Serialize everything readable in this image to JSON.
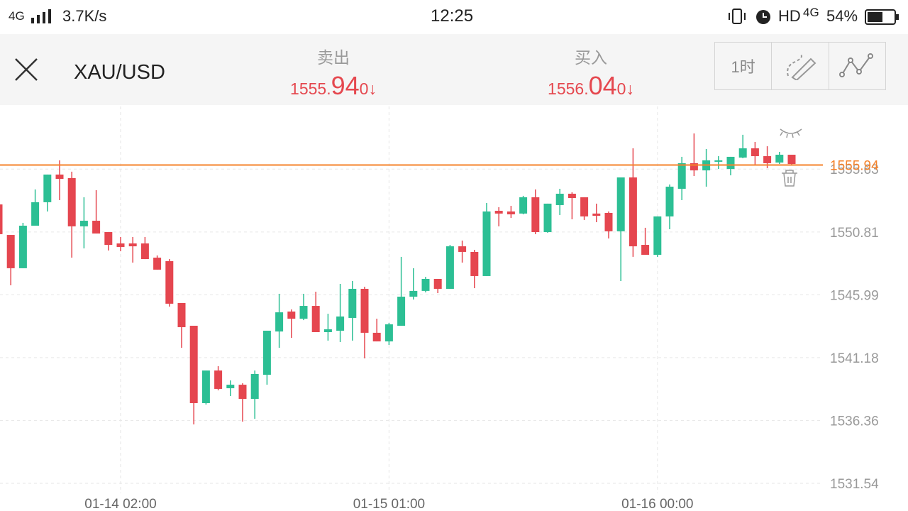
{
  "status_bar": {
    "network": "4G",
    "speed": "3.7K/s",
    "time": "12:25",
    "hd": "HD",
    "network2": "4G",
    "battery": "54%"
  },
  "header": {
    "symbol": "XAU/USD",
    "sell": {
      "label": "卖出",
      "price_main": "1555.",
      "price_big": "94",
      "price_small": "0",
      "arrow": "↓"
    },
    "buy": {
      "label": "买入",
      "price_main": "1556.",
      "price_big": "04",
      "price_small": "0",
      "arrow": "↓"
    },
    "timeframe": "1时"
  },
  "chart_data": {
    "type": "candlestick",
    "categories": [
      null,
      null,
      null,
      null,
      null,
      null,
      null,
      null,
      null,
      null,
      "01-14 02:00",
      null,
      null,
      null,
      null,
      null,
      null,
      null,
      null,
      null,
      null,
      null,
      null,
      null,
      null,
      null,
      null,
      null,
      null,
      null,
      null,
      null,
      "01-15 01:00",
      null,
      null,
      null,
      null,
      null,
      null,
      null,
      null,
      null,
      null,
      null,
      null,
      null,
      null,
      null,
      null,
      null,
      null,
      null,
      null,
      null,
      "01-16 00:00",
      null,
      null,
      null,
      null,
      null,
      null,
      null,
      null,
      null,
      null,
      null
    ],
    "open": [
      1552.92,
      1550.58,
      1548.03,
      1551.29,
      1553.09,
      1555.21,
      1554.94,
      1551.24,
      1551.67,
      1550.8,
      1549.93,
      1549.93,
      1549.93,
      1548.84,
      1548.57,
      1545.36,
      1543.62,
      1537.69,
      1540.19,
      1538.83,
      1539.1,
      1538.01,
      1539.86,
      1543.18,
      1544.71,
      1544.16,
      1545.14,
      1543.13,
      1543.24,
      1544.22,
      1546.45,
      1543.08,
      1542.42,
      1543.62,
      1545.85,
      1546.29,
      1547.21,
      1546.45,
      1549.71,
      1549.28,
      1547.43,
      1552.43,
      1552.38,
      1552.22,
      1553.47,
      1550.8,
      1552.87,
      1553.74,
      1553.47,
      1552.22,
      1552.27,
      1550.86,
      1554.99,
      1549.82,
      1549.06,
      1552.0,
      1554.12,
      1556.08,
      1555.53,
      1556.19,
      1555.64,
      1556.51,
      1557.22,
      1556.62,
      1556.13,
      1556.73
    ],
    "high": [
      1552.92,
      1550.58,
      1551.51,
      1554.07,
      1555.21,
      1556.3,
      1555.43,
      1553.47,
      1554.01,
      1550.8,
      1550.42,
      1550.42,
      1550.42,
      1549.01,
      1548.73,
      1545.36,
      1543.62,
      1540.19,
      1540.52,
      1539.43,
      1539.21,
      1540.19,
      1543.24,
      1546.07,
      1544.87,
      1546.07,
      1546.23,
      1544.54,
      1546.83,
      1547.05,
      1546.61,
      1544.16,
      1543.84,
      1548.9,
      1548.03,
      1547.37,
      1547.21,
      1549.82,
      1550.15,
      1549.44,
      1553.03,
      1552.71,
      1552.81,
      1553.58,
      1554.07,
      1552.98,
      1554.12,
      1553.85,
      1553.47,
      1552.98,
      1552.38,
      1554.99,
      1557.22,
      1551.13,
      1552.0,
      1554.45,
      1556.57,
      1558.36,
      1557.17,
      1556.62,
      1556.57,
      1558.26,
      1557.71,
      1557.38,
      1556.95,
      1556.73
    ],
    "low": [
      1550.64,
      1546.72,
      1548.03,
      1551.29,
      1552.38,
      1553.25,
      1548.84,
      1549.55,
      1550.69,
      1549.39,
      1549.33,
      1548.46,
      1548.73,
      1547.92,
      1545.09,
      1541.93,
      1536.06,
      1537.58,
      1538.67,
      1538.23,
      1536.27,
      1536.49,
      1539.1,
      1541.93,
      1542.69,
      1544.05,
      1543.13,
      1542.48,
      1542.37,
      1542.48,
      1541.12,
      1542.42,
      1542.15,
      1543.62,
      1545.63,
      1546.18,
      1546.12,
      1546.45,
      1548.46,
      1546.5,
      1547.43,
      1551.24,
      1551.89,
      1552.16,
      1550.64,
      1550.75,
      1552.11,
      1551.78,
      1551.73,
      1551.56,
      1550.31,
      1547.05,
      1548.9,
      1549.06,
      1548.9,
      1551.02,
      1553.25,
      1555.1,
      1554.28,
      1555.64,
      1555.15,
      1556.46,
      1555.97,
      1555.7,
      1556.02,
      1555.97
    ],
    "close": [
      1550.64,
      1548.03,
      1551.29,
      1553.09,
      1555.21,
      1554.88,
      1551.24,
      1551.67,
      1550.69,
      1549.82,
      1549.66,
      1549.71,
      1548.73,
      1547.92,
      1545.31,
      1543.51,
      1537.69,
      1540.19,
      1538.78,
      1539.1,
      1538.01,
      1539.92,
      1543.24,
      1544.65,
      1544.16,
      1545.14,
      1543.13,
      1543.35,
      1544.33,
      1546.45,
      1543.08,
      1542.42,
      1543.73,
      1545.85,
      1546.29,
      1547.21,
      1546.45,
      1549.71,
      1549.28,
      1547.43,
      1552.38,
      1552.22,
      1552.16,
      1553.47,
      1550.8,
      1552.98,
      1553.74,
      1553.41,
      1552.0,
      1552.05,
      1550.86,
      1554.99,
      1549.71,
      1549.06,
      1552.0,
      1554.28,
      1556.08,
      1555.53,
      1556.3,
      1556.3,
      1556.57,
      1557.22,
      1556.62,
      1556.08,
      1556.73,
      1556.02
    ],
    "up_color": "#2cbf94",
    "down_color": "#e5464f",
    "ylim": [
      1530.78,
      1560.43
    ],
    "yticks": [
      1531.54,
      1536.36,
      1541.18,
      1545.99,
      1550.81,
      1555.63
    ],
    "grid": true,
    "price_line": {
      "value": 1555.94,
      "color": "#f5822a"
    }
  }
}
